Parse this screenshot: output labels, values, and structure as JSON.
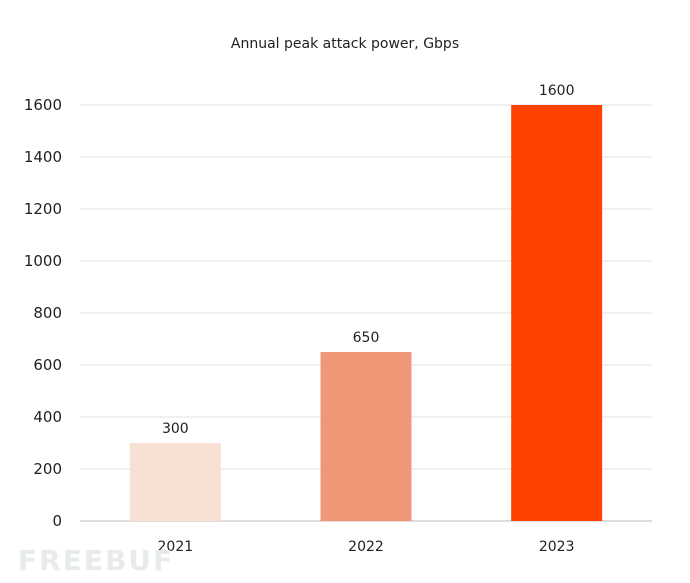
{
  "chart_data": {
    "type": "bar",
    "title": "Annual peak attack power, Gbps",
    "categories": [
      "2021",
      "2022",
      "2023"
    ],
    "values": [
      300,
      650,
      1600
    ],
    "data_labels": [
      "300",
      "650",
      "1600"
    ],
    "colors": [
      "#f7e1d4",
      "#f09777",
      "#ff4200"
    ],
    "ylim": [
      0,
      1600
    ],
    "yticks": [
      0,
      200,
      400,
      600,
      800,
      1000,
      1200,
      1400,
      1600
    ],
    "grid": true,
    "xlabel": "",
    "ylabel": ""
  },
  "watermark": "FREEBUF"
}
